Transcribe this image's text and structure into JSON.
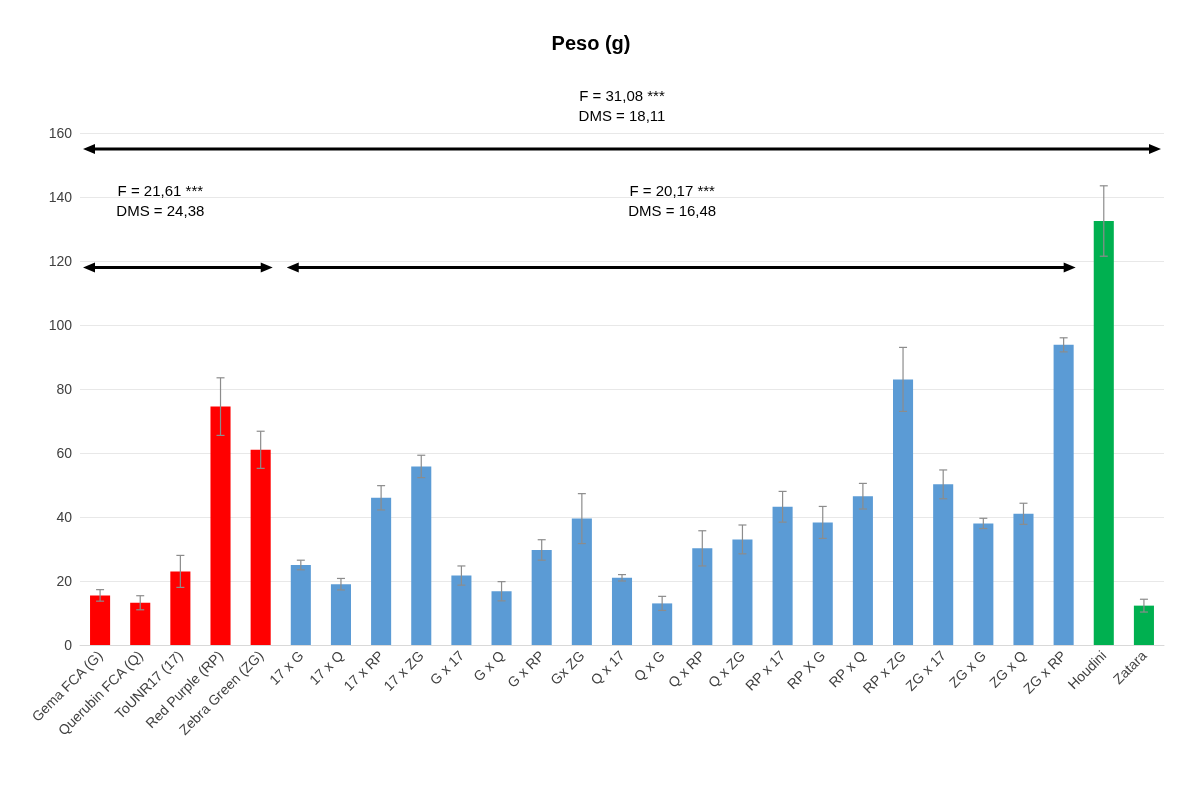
{
  "chart_data": {
    "type": "bar",
    "title": "Peso (g)",
    "categories": [
      "Gema FCA (G)",
      "Querubin FCA (Q)",
      "ToUNR17 (17)",
      "Red Purple (RP)",
      "Zebra Green (ZG)",
      "17 x G",
      "17 x Q",
      "17 x RP",
      "17 x ZG",
      "G x 17",
      "G x Q",
      "G x RP",
      "Gx ZG",
      "Q x 17",
      "Q x G",
      "Q x RP",
      "Q x ZG",
      "RP x 17",
      "RP X G",
      "RP x Q",
      "RP x ZG",
      "ZG x 17",
      "ZG x G",
      "ZG x Q",
      "ZG x RP",
      "Houdini",
      "Zatara"
    ],
    "values": [
      15.5,
      13.2,
      23,
      74.5,
      61,
      25,
      19,
      46,
      55.8,
      21.7,
      16.8,
      29.7,
      39.5,
      21,
      13,
      30.2,
      33,
      43.2,
      38.3,
      46.5,
      83,
      50.2,
      38,
      41,
      93.8,
      132.5,
      12.3
    ],
    "errors": [
      1.8,
      2.2,
      5,
      9,
      5.8,
      1.5,
      1.8,
      3.8,
      3.5,
      3,
      3,
      3.2,
      7.8,
      1,
      2.2,
      5.5,
      4.5,
      4.8,
      5,
      4,
      10,
      4.5,
      1.6,
      3.3,
      2.2,
      11,
      2
    ],
    "colors": [
      "#ff0000",
      "#ff0000",
      "#ff0000",
      "#ff0000",
      "#ff0000",
      "#5b9bd5",
      "#5b9bd5",
      "#5b9bd5",
      "#5b9bd5",
      "#5b9bd5",
      "#5b9bd5",
      "#5b9bd5",
      "#5b9bd5",
      "#5b9bd5",
      "#5b9bd5",
      "#5b9bd5",
      "#5b9bd5",
      "#5b9bd5",
      "#5b9bd5",
      "#5b9bd5",
      "#5b9bd5",
      "#5b9bd5",
      "#5b9bd5",
      "#5b9bd5",
      "#5b9bd5",
      "#00b050",
      "#00b050"
    ],
    "ylim": [
      0,
      160
    ],
    "yticks": [
      0,
      20,
      40,
      60,
      80,
      100,
      120,
      140,
      160
    ],
    "grid": "y",
    "annotations": [
      "F = 31,08 ***\nDMS = 18,11",
      "F = 21,61 ***\nDMS = 24,38",
      "F = 20,17 ***\nDMS = 16,48"
    ]
  }
}
